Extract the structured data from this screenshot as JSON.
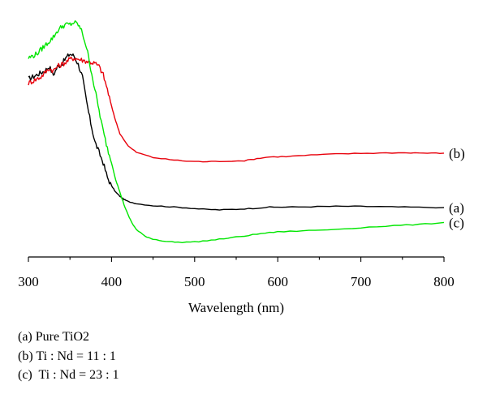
{
  "chart_data": {
    "type": "line",
    "xlabel": "Wavelength (nm)",
    "ylabel": "",
    "xlim": [
      300,
      800
    ],
    "xticks": [
      300,
      400,
      500,
      600,
      700,
      800
    ],
    "y_axis_shown": false,
    "grid": false,
    "series": [
      {
        "name": "(a)",
        "color": "#000000",
        "points": [
          [
            300,
            0.85
          ],
          [
            305,
            0.86
          ],
          [
            310,
            0.87
          ],
          [
            315,
            0.88
          ],
          [
            320,
            0.89
          ],
          [
            325,
            0.91
          ],
          [
            330,
            0.87
          ],
          [
            335,
            0.91
          ],
          [
            340,
            0.92
          ],
          [
            345,
            0.95
          ],
          [
            350,
            0.97
          ],
          [
            355,
            0.96
          ],
          [
            360,
            0.92
          ],
          [
            365,
            0.86
          ],
          [
            370,
            0.74
          ],
          [
            375,
            0.64
          ],
          [
            380,
            0.55
          ],
          [
            385,
            0.5
          ],
          [
            390,
            0.45
          ],
          [
            395,
            0.38
          ],
          [
            400,
            0.34
          ],
          [
            405,
            0.31
          ],
          [
            410,
            0.29
          ],
          [
            415,
            0.275
          ],
          [
            420,
            0.265
          ],
          [
            430,
            0.255
          ],
          [
            450,
            0.245
          ],
          [
            470,
            0.24
          ],
          [
            490,
            0.235
          ],
          [
            510,
            0.228
          ],
          [
            530,
            0.225
          ],
          [
            550,
            0.228
          ],
          [
            570,
            0.232
          ],
          [
            590,
            0.238
          ],
          [
            610,
            0.238
          ],
          [
            640,
            0.24
          ],
          [
            670,
            0.242
          ],
          [
            700,
            0.242
          ],
          [
            730,
            0.24
          ],
          [
            760,
            0.238
          ],
          [
            800,
            0.236
          ]
        ]
      },
      {
        "name": "(b)",
        "color": "#e8000b",
        "points": [
          [
            300,
            0.83
          ],
          [
            305,
            0.84
          ],
          [
            310,
            0.85
          ],
          [
            315,
            0.86
          ],
          [
            320,
            0.88
          ],
          [
            325,
            0.9
          ],
          [
            330,
            0.89
          ],
          [
            335,
            0.91
          ],
          [
            340,
            0.92
          ],
          [
            345,
            0.93
          ],
          [
            350,
            0.945
          ],
          [
            355,
            0.95
          ],
          [
            360,
            0.945
          ],
          [
            365,
            0.94
          ],
          [
            370,
            0.935
          ],
          [
            375,
            0.93
          ],
          [
            380,
            0.925
          ],
          [
            385,
            0.91
          ],
          [
            390,
            0.87
          ],
          [
            395,
            0.8
          ],
          [
            400,
            0.72
          ],
          [
            405,
            0.65
          ],
          [
            410,
            0.59
          ],
          [
            420,
            0.53
          ],
          [
            430,
            0.5
          ],
          [
            450,
            0.475
          ],
          [
            470,
            0.465
          ],
          [
            490,
            0.458
          ],
          [
            510,
            0.455
          ],
          [
            530,
            0.457
          ],
          [
            560,
            0.46
          ],
          [
            575,
            0.47
          ],
          [
            590,
            0.478
          ],
          [
            610,
            0.48
          ],
          [
            640,
            0.487
          ],
          [
            670,
            0.492
          ],
          [
            700,
            0.495
          ],
          [
            730,
            0.497
          ],
          [
            760,
            0.498
          ],
          [
            780,
            0.496
          ],
          [
            800,
            0.496
          ]
        ]
      },
      {
        "name": "(c)",
        "color": "#00e600",
        "points": [
          [
            300,
            0.95
          ],
          [
            305,
            0.96
          ],
          [
            310,
            0.97
          ],
          [
            315,
            0.99
          ],
          [
            320,
            1.01
          ],
          [
            325,
            1.03
          ],
          [
            330,
            1.05
          ],
          [
            335,
            1.08
          ],
          [
            340,
            1.1
          ],
          [
            345,
            1.11
          ],
          [
            350,
            1.11
          ],
          [
            355,
            1.12
          ],
          [
            360,
            1.11
          ],
          [
            365,
            1.07
          ],
          [
            370,
            1.0
          ],
          [
            375,
            0.9
          ],
          [
            380,
            0.8
          ],
          [
            385,
            0.7
          ],
          [
            390,
            0.6
          ],
          [
            395,
            0.52
          ],
          [
            400,
            0.45
          ],
          [
            405,
            0.37
          ],
          [
            410,
            0.31
          ],
          [
            415,
            0.25
          ],
          [
            420,
            0.2
          ],
          [
            425,
            0.16
          ],
          [
            430,
            0.13
          ],
          [
            440,
            0.1
          ],
          [
            450,
            0.085
          ],
          [
            465,
            0.075
          ],
          [
            480,
            0.07
          ],
          [
            500,
            0.072
          ],
          [
            520,
            0.08
          ],
          [
            540,
            0.09
          ],
          [
            560,
            0.1
          ],
          [
            580,
            0.112
          ],
          [
            600,
            0.12
          ],
          [
            630,
            0.125
          ],
          [
            660,
            0.13
          ],
          [
            700,
            0.14
          ],
          [
            740,
            0.15
          ],
          [
            770,
            0.155
          ],
          [
            800,
            0.165
          ]
        ]
      }
    ],
    "annotations": [
      {
        "text": "(b)",
        "series": "(b)"
      },
      {
        "text": "(a)",
        "series": "(a)"
      },
      {
        "text": "(c)",
        "series": "(c)"
      }
    ]
  },
  "legend": {
    "line_a": "(a) Pure TiO2",
    "line_b": "(b) Ti : Nd = 11 : 1",
    "line_c": "(c)  Ti : Nd = 23 : 1"
  }
}
